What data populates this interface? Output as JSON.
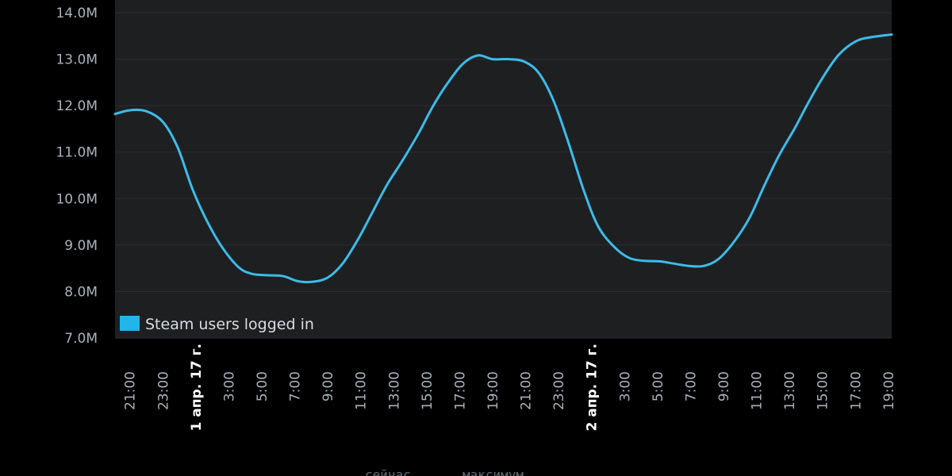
{
  "colors": {
    "plot_bg": "#1e1f21",
    "grid": "#2c2f33",
    "series": "#3bbcea",
    "legend_swatch": "#22b5ea"
  },
  "footer": {
    "now_label": "сейчас",
    "max_label": "максимум"
  },
  "chart_data": {
    "type": "line",
    "xlabel": "",
    "ylabel": "",
    "ylim": [
      7.0,
      14.0
    ],
    "y_ticks": [
      "7.0M",
      "8.0M",
      "9.0M",
      "10.0M",
      "11.0M",
      "12.0M",
      "13.0M",
      "14.0M"
    ],
    "x_ticks": [
      {
        "label": "21:00",
        "hour": 21
      },
      {
        "label": "23:00",
        "hour": 23
      },
      {
        "label": "1 апр. 17 г.",
        "hour": 25,
        "date": true
      },
      {
        "label": "3:00",
        "hour": 27
      },
      {
        "label": "5:00",
        "hour": 29
      },
      {
        "label": "7:00",
        "hour": 31
      },
      {
        "label": "9:00",
        "hour": 33
      },
      {
        "label": "11:00",
        "hour": 35
      },
      {
        "label": "13:00",
        "hour": 37
      },
      {
        "label": "15:00",
        "hour": 39
      },
      {
        "label": "17:00",
        "hour": 41
      },
      {
        "label": "19:00",
        "hour": 43
      },
      {
        "label": "21:00",
        "hour": 45
      },
      {
        "label": "23:00",
        "hour": 47
      },
      {
        "label": "2 апр. 17 г.",
        "hour": 49,
        "date": true
      },
      {
        "label": "3:00",
        "hour": 51
      },
      {
        "label": "5:00",
        "hour": 53
      },
      {
        "label": "7:00",
        "hour": 55
      },
      {
        "label": "9:00",
        "hour": 57
      },
      {
        "label": "11:00",
        "hour": 59
      },
      {
        "label": "13:00",
        "hour": 61
      },
      {
        "label": "15:00",
        "hour": 63
      },
      {
        "label": "17:00",
        "hour": 65
      },
      {
        "label": "19:00",
        "hour": 67
      }
    ],
    "grid": true,
    "legend_position": "bottom-left",
    "series": [
      {
        "name": "Steam users logged in",
        "points": [
          [
            20.1,
            11.82
          ],
          [
            21.0,
            11.9
          ],
          [
            22.0,
            11.88
          ],
          [
            23.0,
            11.65
          ],
          [
            23.9,
            11.1
          ],
          [
            24.8,
            10.2
          ],
          [
            25.7,
            9.5
          ],
          [
            26.6,
            8.95
          ],
          [
            27.6,
            8.52
          ],
          [
            28.4,
            8.38
          ],
          [
            29.3,
            8.35
          ],
          [
            30.3,
            8.33
          ],
          [
            31.2,
            8.22
          ],
          [
            32.1,
            8.21
          ],
          [
            33.0,
            8.3
          ],
          [
            33.9,
            8.6
          ],
          [
            34.8,
            9.1
          ],
          [
            35.7,
            9.7
          ],
          [
            36.6,
            10.3
          ],
          [
            37.5,
            10.8
          ],
          [
            38.5,
            11.4
          ],
          [
            39.4,
            12.0
          ],
          [
            40.3,
            12.5
          ],
          [
            41.2,
            12.9
          ],
          [
            42.1,
            13.08
          ],
          [
            43.0,
            13.0
          ],
          [
            44.0,
            13.0
          ],
          [
            44.9,
            12.95
          ],
          [
            45.8,
            12.7
          ],
          [
            46.7,
            12.1
          ],
          [
            47.6,
            11.2
          ],
          [
            48.5,
            10.2
          ],
          [
            49.4,
            9.4
          ],
          [
            50.4,
            8.95
          ],
          [
            51.3,
            8.72
          ],
          [
            52.2,
            8.66
          ],
          [
            53.1,
            8.65
          ],
          [
            54.0,
            8.6
          ],
          [
            54.9,
            8.55
          ],
          [
            55.8,
            8.55
          ],
          [
            56.7,
            8.7
          ],
          [
            57.7,
            9.1
          ],
          [
            58.6,
            9.6
          ],
          [
            59.5,
            10.3
          ],
          [
            60.4,
            10.95
          ],
          [
            61.3,
            11.5
          ],
          [
            62.2,
            12.1
          ],
          [
            63.1,
            12.65
          ],
          [
            64.0,
            13.1
          ],
          [
            65.0,
            13.38
          ],
          [
            65.9,
            13.47
          ],
          [
            67.2,
            13.53
          ]
        ]
      }
    ]
  }
}
